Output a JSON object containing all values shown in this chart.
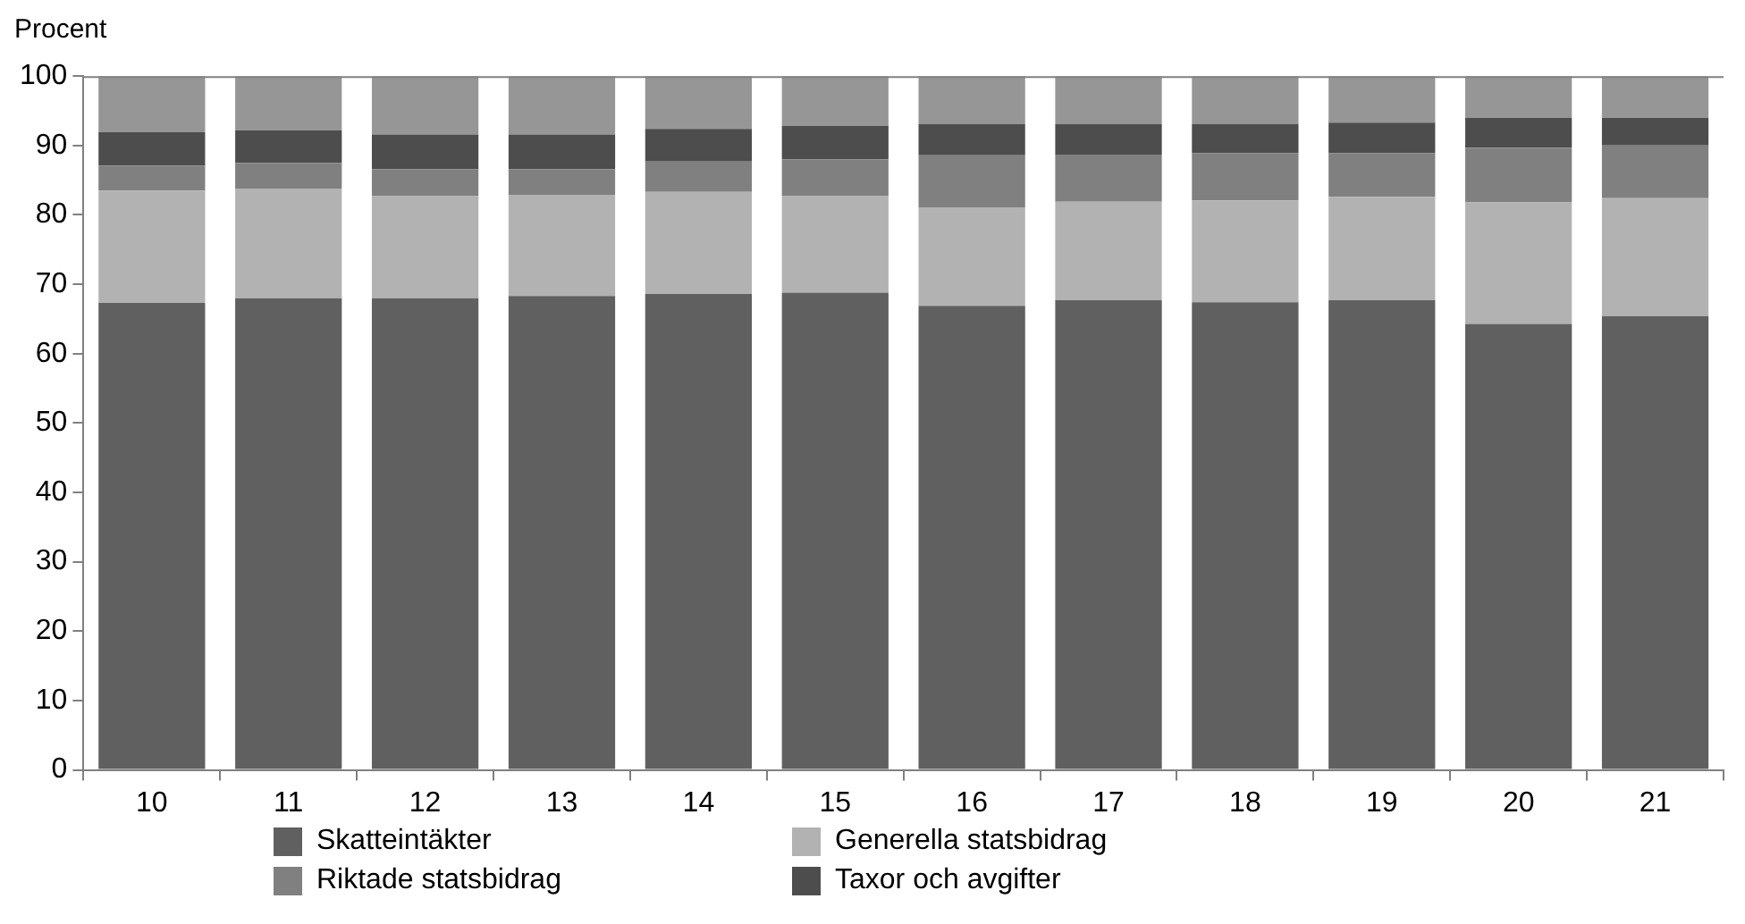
{
  "chart_data": {
    "type": "bar",
    "ylabel": "Procent",
    "categories": [
      "10",
      "11",
      "12",
      "13",
      "14",
      "15",
      "16",
      "17",
      "18",
      "19",
      "20",
      "21"
    ],
    "stacked": true,
    "ylim": [
      0,
      100
    ],
    "yticks": [
      0,
      10,
      20,
      30,
      40,
      50,
      60,
      70,
      80,
      90,
      100
    ],
    "grid": false,
    "legend": "bottom",
    "series": [
      {
        "name": "Skatteintäkter",
        "color": "#606060",
        "values": [
          67.3,
          68.0,
          68.0,
          68.3,
          68.6,
          68.8,
          66.9,
          67.7,
          67.4,
          67.7,
          64.3,
          65.4
        ]
      },
      {
        "name": "Generella statsbidrag",
        "color": "#b2b2b2",
        "values": [
          16.2,
          15.8,
          14.7,
          14.6,
          14.7,
          13.9,
          14.2,
          14.2,
          14.7,
          14.9,
          17.5,
          17.0
        ]
      },
      {
        "name": "Riktade statsbidrag",
        "color": "#808080",
        "values": [
          3.6,
          3.7,
          3.9,
          3.7,
          4.4,
          5.3,
          7.5,
          6.8,
          6.8,
          6.3,
          7.9,
          7.6
        ]
      },
      {
        "name": "Taxor och avgifter",
        "color": "#4d4d4d",
        "values": [
          4.8,
          4.7,
          5.0,
          5.0,
          4.7,
          4.8,
          4.5,
          4.4,
          4.2,
          4.4,
          4.3,
          4.0
        ]
      },
      {
        "color": "#969696",
        "values": [
          8.1,
          7.8,
          8.4,
          8.4,
          7.6,
          7.2,
          6.9,
          6.9,
          6.9,
          6.7,
          6.0,
          6.0
        ]
      }
    ]
  }
}
